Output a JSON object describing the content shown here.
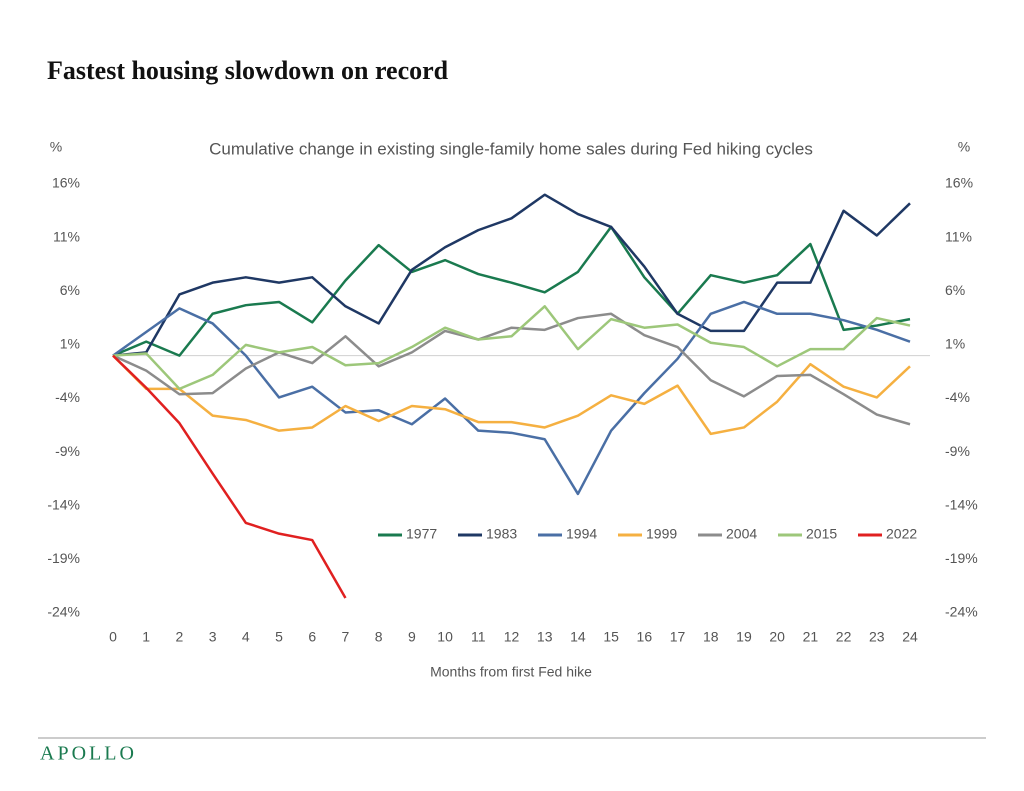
{
  "chart_data": {
    "type": "line",
    "title": "Fastest housing slowdown on record",
    "subtitle": "Cumulative change in existing single-family home sales during Fed hiking cycles",
    "y_unit": "%",
    "y2_unit": "%",
    "x_label": "Months from first Fed hike",
    "brand": "APOLLO",
    "x": [
      0,
      1,
      2,
      3,
      4,
      5,
      6,
      7,
      8,
      9,
      10,
      11,
      12,
      13,
      14,
      15,
      16,
      17,
      18,
      19,
      20,
      21,
      22,
      23,
      24
    ],
    "xlim": [
      0,
      24
    ],
    "ylim": [
      -24,
      16
    ],
    "yticks": [
      {
        "value": 16,
        "label": "16%"
      },
      {
        "value": 11,
        "label": "11%"
      },
      {
        "value": 6,
        "label": "6%"
      },
      {
        "value": 1,
        "label": "1%"
      },
      {
        "value": -4,
        "label": "-4%"
      },
      {
        "value": -9,
        "label": "-9%"
      },
      {
        "value": -14,
        "label": "-14%"
      },
      {
        "value": -19,
        "label": "-19%"
      },
      {
        "value": -24,
        "label": "-24%"
      }
    ],
    "y2lim": [
      -24,
      16
    ],
    "y2ticks": [
      {
        "value": 16,
        "label": "16%"
      },
      {
        "value": 11,
        "label": "11%"
      },
      {
        "value": 6,
        "label": "6%"
      },
      {
        "value": 1,
        "label": "1%"
      },
      {
        "value": -4,
        "label": "-4%"
      },
      {
        "value": -9,
        "label": "-9%"
      },
      {
        "value": -14,
        "label": "-14%"
      },
      {
        "value": -19,
        "label": "-19%"
      },
      {
        "value": -24,
        "label": "-24%"
      }
    ],
    "series": [
      {
        "name": "1977",
        "color": "#1a7a4f",
        "values": [
          0,
          1.3,
          0,
          3.9,
          4.7,
          5.0,
          3.1,
          7.0,
          10.3,
          7.8,
          8.9,
          7.6,
          6.8,
          5.9,
          7.8,
          12.0,
          7.3,
          3.9,
          7.5,
          6.8,
          7.5,
          10.4,
          2.4,
          2.8,
          3.4
        ]
      },
      {
        "name": "1983",
        "color": "#1f3864",
        "values": [
          0,
          0.3,
          5.7,
          6.8,
          7.3,
          6.8,
          7.3,
          4.6,
          3.0,
          8.0,
          10.1,
          11.7,
          12.8,
          15.0,
          13.2,
          12.0,
          8.3,
          3.9,
          2.3,
          2.3,
          6.8,
          6.8,
          13.5,
          11.2,
          14.2
        ]
      },
      {
        "name": "1994",
        "color": "#4a6fa5",
        "values": [
          0,
          2.2,
          4.4,
          3.0,
          0,
          -3.9,
          -2.9,
          -5.3,
          -5.1,
          -6.4,
          -4.0,
          -7.0,
          -7.2,
          -7.8,
          -12.9,
          -7.0,
          -3.5,
          -0.3,
          3.9,
          5.0,
          3.9,
          3.9,
          3.3,
          2.4,
          1.3
        ]
      },
      {
        "name": "1999",
        "color": "#f5b041",
        "values": [
          0,
          -3.1,
          -3.1,
          -5.6,
          -6.0,
          -7.0,
          -6.7,
          -4.7,
          -6.1,
          -4.7,
          -5.0,
          -6.2,
          -6.2,
          -6.7,
          -5.6,
          -3.7,
          -4.5,
          -2.8,
          -7.3,
          -6.7,
          -4.3,
          -0.8,
          -2.9,
          -3.9,
          -1.0
        ]
      },
      {
        "name": "2004",
        "color": "#8c8c8c",
        "values": [
          0,
          -1.4,
          -3.6,
          -3.5,
          -1.2,
          0.3,
          -0.7,
          1.8,
          -1.0,
          0.3,
          2.3,
          1.5,
          2.6,
          2.4,
          3.5,
          3.9,
          1.9,
          0.8,
          -2.3,
          -3.8,
          -1.9,
          -1.8,
          -3.6,
          -5.5,
          -6.4
        ]
      },
      {
        "name": "2015",
        "color": "#9dc77a",
        "values": [
          0,
          0.2,
          -3.1,
          -1.8,
          1.0,
          0.3,
          0.8,
          -0.9,
          -0.7,
          0.8,
          2.6,
          1.5,
          1.8,
          4.6,
          0.6,
          3.4,
          2.6,
          2.9,
          1.2,
          0.8,
          -1.0,
          0.6,
          0.6,
          3.5,
          2.8
        ]
      },
      {
        "name": "2022",
        "color": "#e02020",
        "values": [
          0,
          -3.0,
          -6.3,
          -11.0,
          -15.6,
          -16.6,
          -17.2,
          -22.6,
          null,
          null,
          null,
          null,
          null,
          null,
          null,
          null,
          null,
          null,
          null,
          null,
          null,
          null,
          null,
          null,
          null
        ]
      }
    ]
  }
}
